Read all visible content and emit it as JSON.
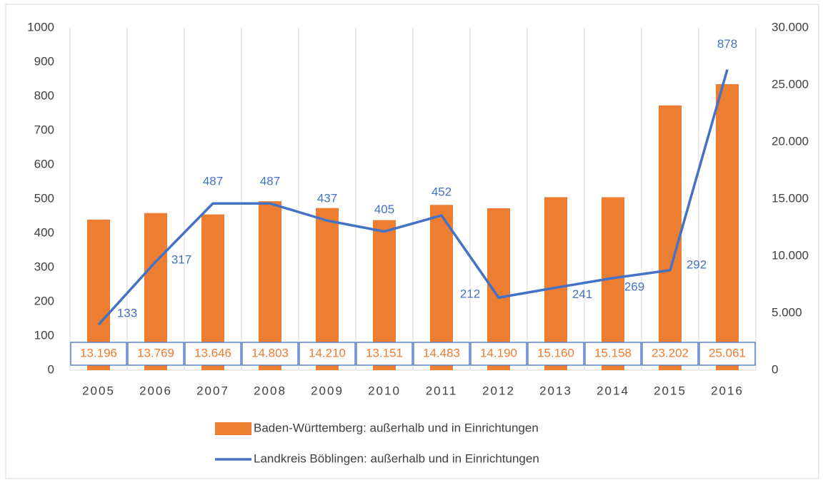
{
  "chart_data": {
    "type": "bar-line",
    "categories": [
      "2005",
      "2006",
      "2007",
      "2008",
      "2009",
      "2010",
      "2011",
      "2012",
      "2013",
      "2014",
      "2015",
      "2016"
    ],
    "series": [
      {
        "name": "Baden-Württemberg: außerhalb und in Einrichtungen",
        "type": "bar",
        "axis": "y2",
        "color": "#ed7d31",
        "values": [
          13196,
          13769,
          13646,
          14803,
          14210,
          13151,
          14483,
          14190,
          15160,
          15158,
          23202,
          25061
        ],
        "value_labels": [
          "13.196",
          "13.769",
          "13.646",
          "14.803",
          "14.210",
          "13.151",
          "14.483",
          "14.190",
          "15.160",
          "15.158",
          "23.202",
          "25.061"
        ]
      },
      {
        "name": "Landkreis Böblingen: außerhalb und in Einrichtungen",
        "type": "line",
        "axis": "y",
        "color": "#4472c4",
        "values": [
          133,
          317,
          487,
          487,
          437,
          405,
          452,
          212,
          241,
          269,
          292,
          878
        ]
      }
    ],
    "ylim": [
      0,
      1000
    ],
    "yticks": [
      0,
      100,
      200,
      300,
      400,
      500,
      600,
      700,
      800,
      900,
      1000
    ],
    "y2lim": [
      0,
      30000
    ],
    "y2ticks": [
      0,
      {
        "value": 5000,
        "label": "5.000"
      },
      {
        "value": 10000,
        "label": "10.000"
      },
      {
        "value": 15000,
        "label": "15.000"
      },
      {
        "value": 20000,
        "label": "20.000"
      },
      {
        "value": 25000,
        "label": "25.000"
      },
      {
        "value": 30000,
        "label": "30.000"
      }
    ],
    "grid": true,
    "legend": "bottom"
  }
}
